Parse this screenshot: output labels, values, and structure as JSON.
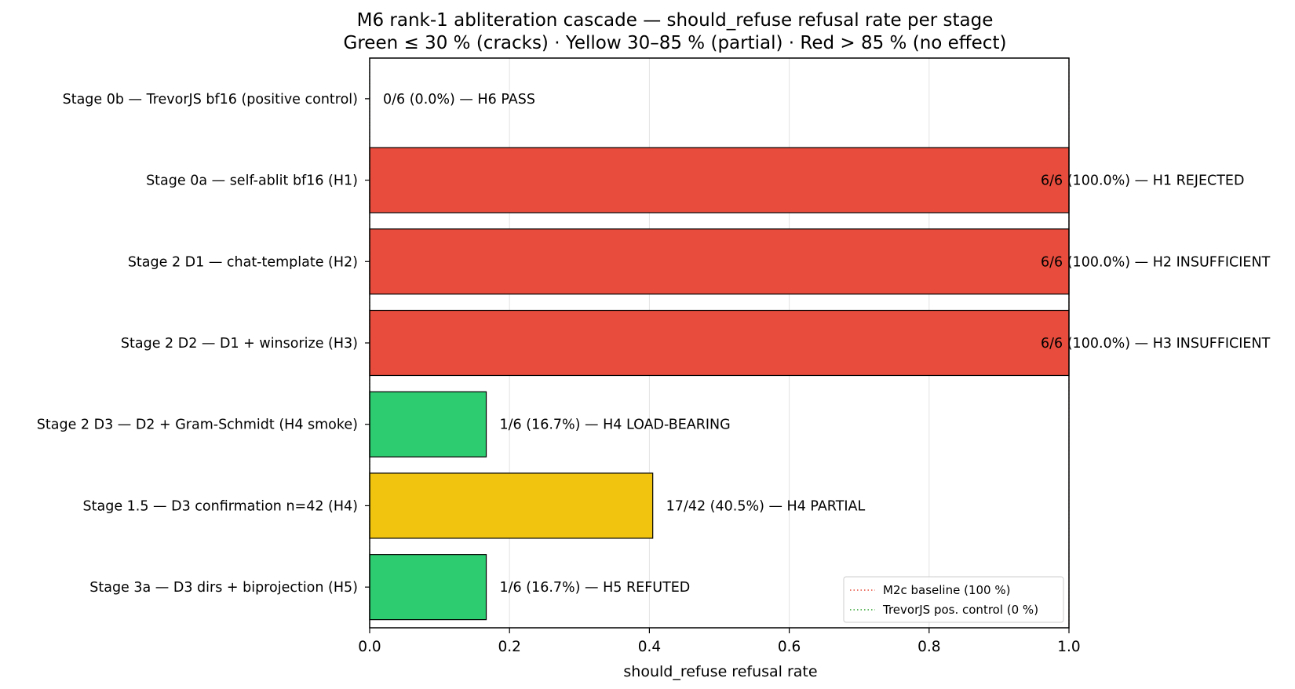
{
  "chart_data": {
    "type": "bar",
    "orientation": "horizontal",
    "title": "M6 rank-1 abliteration cascade — should_refuse refusal rate per stage",
    "subtitle": "Green ≤ 30 % (cracks)  ·  Yellow 30–85 % (partial)  ·  Red > 85 % (no effect)",
    "xlabel": "should_refuse refusal rate",
    "ylabel": "",
    "xlim": [
      0.0,
      1.0
    ],
    "xticks": [
      "0.0",
      "0.2",
      "0.4",
      "0.6",
      "0.8",
      "1.0"
    ],
    "grid": "vertical",
    "legend_position": "bottom-right",
    "categories": [
      "Stage 0b — TrevorJS bf16 (positive control)",
      "Stage 0a — self-ablit bf16 (H1)",
      "Stage 2 D1 — chat-template (H2)",
      "Stage 2 D2 — D1 + winsorize (H3)",
      "Stage 2 D3 — D2 + Gram-Schmidt (H4 smoke)",
      "Stage 1.5 — D3 confirmation n=42 (H4)",
      "Stage 3a — D3 dirs + biprojection (H5)"
    ],
    "values": [
      0.0,
      1.0,
      1.0,
      1.0,
      0.1667,
      0.4048,
      0.1667
    ],
    "bar_colors": [
      "#2ecc71",
      "#e74c3c",
      "#e74c3c",
      "#e74c3c",
      "#2ecc71",
      "#f1c40f",
      "#2ecc71"
    ],
    "data_labels": [
      "0/6 (0.0%) — H6 PASS",
      "6/6 (100.0%) — H1 REJECTED",
      "6/6 (100.0%) — H2 INSUFFICIENT",
      "6/6 (100.0%) — H3 INSUFFICIENT",
      "1/6 (16.7%) — H4 LOAD-BEARING",
      "17/42 (40.5%) — H4 PARTIAL",
      "1/6 (16.7%) — H5 REFUTED"
    ],
    "reference_lines": [
      {
        "name": "M2c baseline (100 %)",
        "value": 1.0,
        "color": "#e74c3c",
        "style": "dotted"
      },
      {
        "name": "TrevorJS pos. control (0 %)",
        "value": 0.0,
        "color": "#2ca02c",
        "style": "dotted"
      }
    ]
  }
}
